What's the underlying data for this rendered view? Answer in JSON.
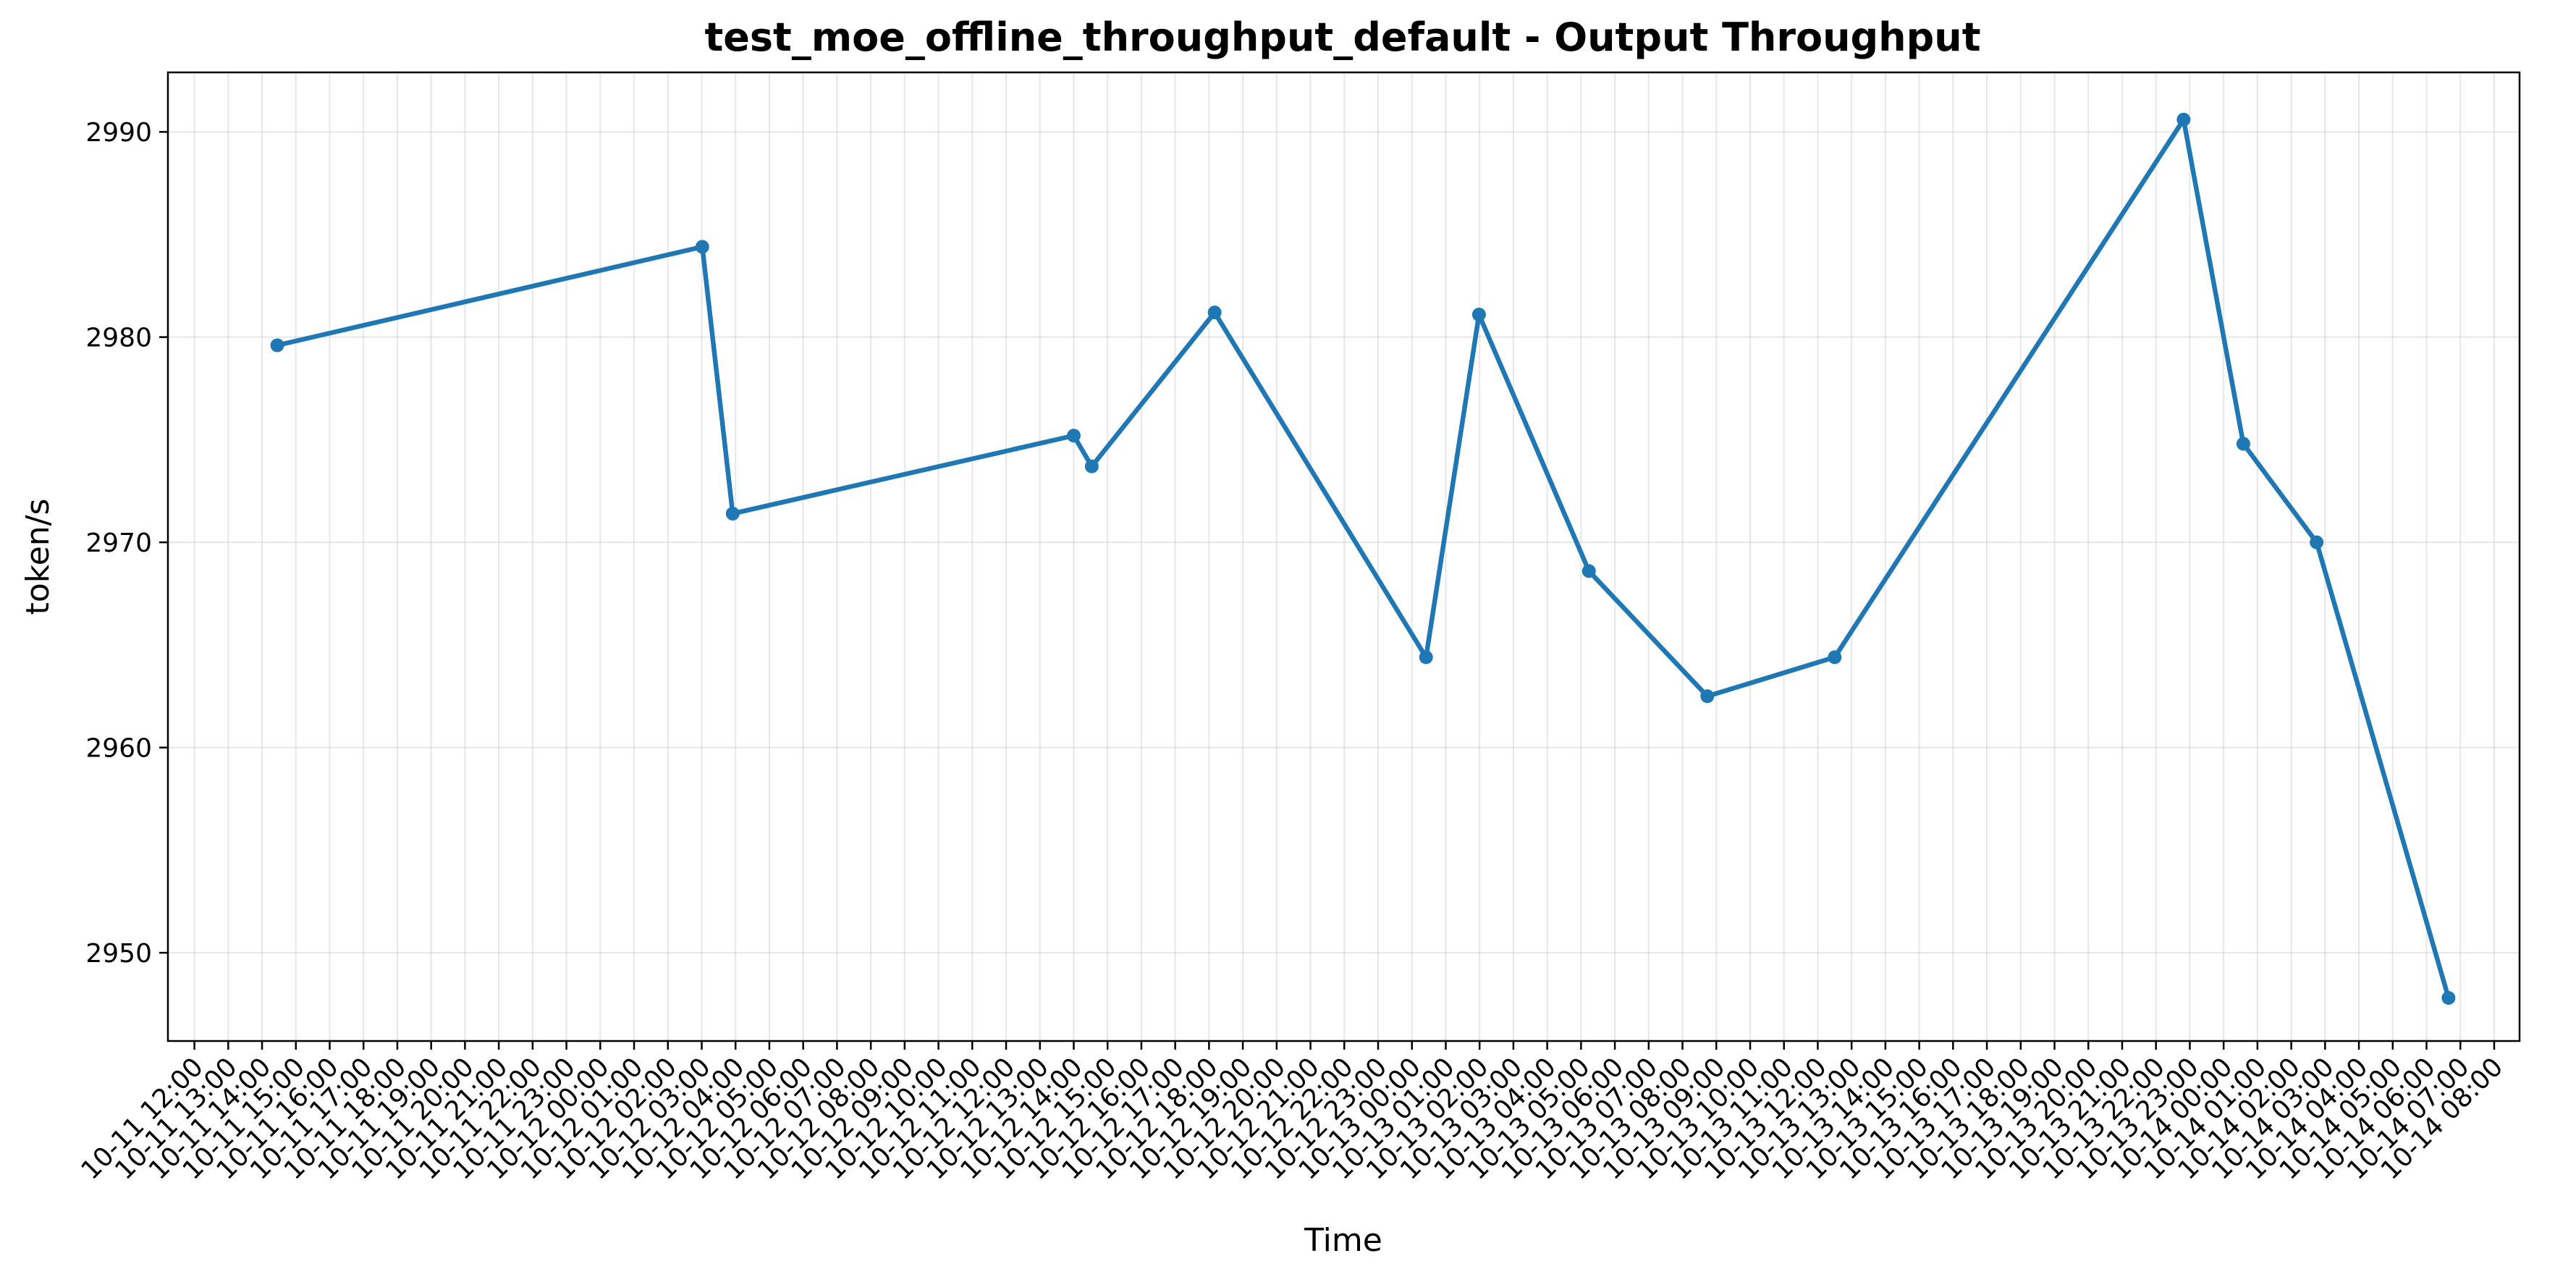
{
  "chart_data": {
    "type": "line",
    "title": "test_moe_offline_throughput_default - Output Throughput",
    "xlabel": "Time",
    "ylabel": "token/s",
    "ylim": [
      2945.7,
      2992.9
    ],
    "y_ticks": [
      2950,
      2960,
      2970,
      2980,
      2990
    ],
    "grid": true,
    "x_ticks": [
      "10-11 12:00",
      "10-11 13:00",
      "10-11 14:00",
      "10-11 15:00",
      "10-11 16:00",
      "10-11 17:00",
      "10-11 18:00",
      "10-11 19:00",
      "10-11 20:00",
      "10-11 21:00",
      "10-11 22:00",
      "10-11 23:00",
      "10-12 00:00",
      "10-12 01:00",
      "10-12 02:00",
      "10-12 03:00",
      "10-12 04:00",
      "10-12 05:00",
      "10-12 06:00",
      "10-12 07:00",
      "10-12 08:00",
      "10-12 09:00",
      "10-12 10:00",
      "10-12 11:00",
      "10-12 12:00",
      "10-12 13:00",
      "10-12 14:00",
      "10-12 15:00",
      "10-12 16:00",
      "10-12 17:00",
      "10-12 18:00",
      "10-12 19:00",
      "10-12 20:00",
      "10-12 21:00",
      "10-12 22:00",
      "10-12 23:00",
      "10-13 00:00",
      "10-13 01:00",
      "10-13 02:00",
      "10-13 03:00",
      "10-13 04:00",
      "10-13 05:00",
      "10-13 06:00",
      "10-13 07:00",
      "10-13 08:00",
      "10-13 09:00",
      "10-13 10:00",
      "10-13 11:00",
      "10-13 12:00",
      "10-13 13:00",
      "10-13 14:00",
      "10-13 15:00",
      "10-13 16:00",
      "10-13 17:00",
      "10-13 18:00",
      "10-13 19:00",
      "10-13 20:00",
      "10-13 21:00",
      "10-13 22:00",
      "10-13 23:00",
      "10-14 00:00",
      "10-14 01:00",
      "10-14 02:00",
      "10-14 03:00",
      "10-14 04:00",
      "10-14 05:00",
      "10-14 06:00",
      "10-14 07:00",
      "10-14 08:00"
    ],
    "xlim": [
      "2025-10-11 11:13",
      "2025-10-14 08:45"
    ],
    "series": [
      {
        "color": "#1f77b4",
        "x": [
          "2025-10-11 14:27",
          "2025-10-12 03:01",
          "2025-10-12 03:55",
          "2025-10-12 14:00",
          "2025-10-12 14:32",
          "2025-10-12 18:10",
          "2025-10-13 00:25",
          "2025-10-13 01:59",
          "2025-10-13 05:14",
          "2025-10-13 08:44",
          "2025-10-13 12:30",
          "2025-10-13 22:49",
          "2025-10-14 00:35",
          "2025-10-14 02:45",
          "2025-10-14 06:39"
        ],
        "y": [
          2979.6,
          2984.4,
          2971.4,
          2975.2,
          2973.7,
          2981.2,
          2964.4,
          2981.1,
          2968.6,
          2962.5,
          2964.4,
          2990.6,
          2974.8,
          2970.0,
          2947.8
        ]
      }
    ]
  }
}
